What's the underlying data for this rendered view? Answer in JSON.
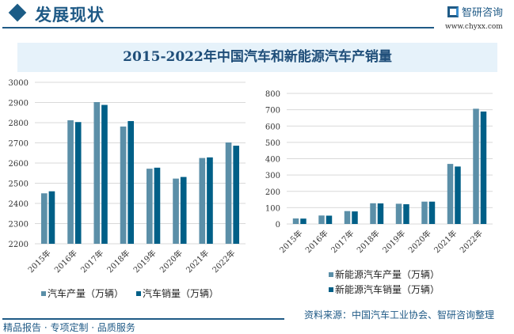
{
  "header": {
    "title": "发展现状",
    "logo_text": "智研咨询",
    "url": "www.chyxx.com"
  },
  "banner_title": "2015-2022年中国汽车和新能源汽车产销量",
  "colors": {
    "production": "#5b8fa8",
    "sales": "#005f87",
    "accent": "#1f5a86"
  },
  "chart_data": [
    {
      "type": "bar",
      "title": "2015-2022年中国汽车和新能源汽车产销量",
      "categories": [
        "2015年",
        "2016年",
        "2017年",
        "2018年",
        "2019年",
        "2020年",
        "2021年",
        "2022年"
      ],
      "series": [
        {
          "name": "汽车产量（万辆）",
          "values": [
            2450,
            2812,
            2902,
            2781,
            2572,
            2523,
            2625,
            2702
          ]
        },
        {
          "name": "汽车销量（万辆）",
          "values": [
            2460,
            2803,
            2888,
            2808,
            2577,
            2531,
            2628,
            2686
          ]
        }
      ],
      "ylim": [
        2200,
        3000
      ],
      "yticks": [
        "2200",
        "2300",
        "2400",
        "2500",
        "2600",
        "2700",
        "2800",
        "2900",
        "3000"
      ],
      "grid": true,
      "legend": "bottom"
    },
    {
      "type": "bar",
      "categories": [
        "2015年",
        "2016年",
        "2017年",
        "2018年",
        "2019年",
        "2020年",
        "2021年",
        "2022年"
      ],
      "series": [
        {
          "name": "新能源汽车产量（万辆）",
          "values": [
            34,
            52,
            79,
            127,
            124,
            137,
            368,
            706
          ]
        },
        {
          "name": "新能源汽车销量（万辆）",
          "values": [
            33,
            51,
            77,
            126,
            121,
            137,
            352,
            689
          ]
        }
      ],
      "ylim": [
        0,
        800
      ],
      "yticks": [
        "0",
        "100",
        "200",
        "300",
        "400",
        "500",
        "600",
        "700",
        "800"
      ],
      "grid": true,
      "legend": "bottom-right"
    }
  ],
  "footer": {
    "slogan": "精品报告 · 专项定制 · 品质服务",
    "source": "资料来源：中国汽车工业协会、智研咨询整理"
  }
}
